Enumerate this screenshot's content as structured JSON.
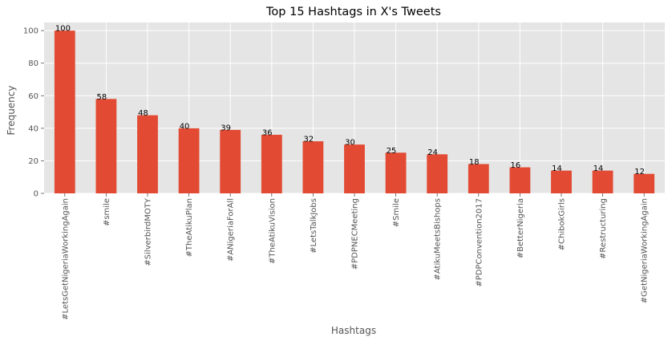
{
  "chart_data": {
    "type": "bar",
    "title": "Top 15 Hashtags in X's Tweets",
    "xlabel": "Hashtags",
    "ylabel": "Frequency",
    "categories": [
      "#LetsGetNigeriaWorkingAgain",
      "#smile",
      "#SilverbirdMOTY",
      "#TheAtikuPlan",
      "#ANigeriaForAll",
      "#TheAtikuVision",
      "#LetsTalkJobs",
      "#PDPNECMeeting",
      "#Smile",
      "#AtikuMeetsBishops",
      "#PDPConvention2017",
      "#BetterNigeria",
      "#ChibokGirls",
      "#Restructuring",
      "#GetNigeriaWorkingAgain"
    ],
    "values": [
      100,
      58,
      48,
      40,
      39,
      36,
      32,
      30,
      25,
      24,
      18,
      16,
      14,
      14,
      12
    ],
    "ylim": [
      0,
      105
    ],
    "yticks": [
      0,
      20,
      40,
      60,
      80,
      100
    ],
    "grid": true,
    "colors": {
      "bar": "#E24A33",
      "plot_background": "#E5E5E5",
      "grid": "#FFFFFF"
    }
  }
}
